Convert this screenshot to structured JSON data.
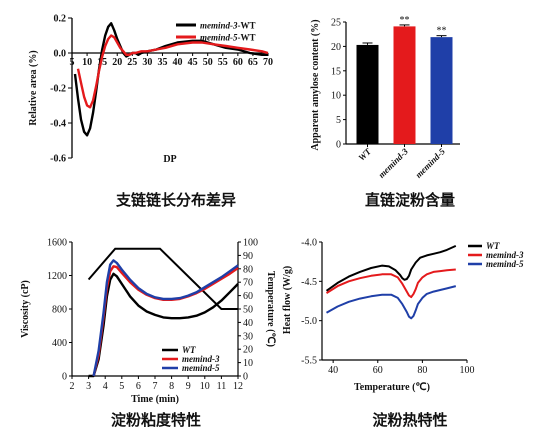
{
  "captions": {
    "tl": "支链链长分布差异",
    "tr": "直链淀粉含量",
    "bl": "淀粉粘度特性",
    "br": "淀粉热特性"
  },
  "chart_data": [
    {
      "type": "line",
      "id": "chain_length",
      "xlabel": "DP",
      "ylabel": "Relative area (%)",
      "xlim": [
        5,
        70
      ],
      "ylim": [
        -0.6,
        0.2
      ],
      "xticks": [
        "5",
        "10",
        "15",
        "20",
        "25",
        "30",
        "35",
        "40",
        "45",
        "50",
        "55",
        "60",
        "65",
        "70"
      ],
      "yticks": [
        "-0.6",
        "-0.4",
        "-0.2",
        "0.0",
        "0.2"
      ],
      "legend_position": "top-right",
      "series": [
        {
          "name": "memind-3-WT",
          "color": "#000000",
          "x": [
            6,
            7,
            8,
            9,
            10,
            11,
            12,
            13,
            14,
            15,
            16,
            17,
            18,
            19,
            20,
            21,
            22,
            23,
            24,
            25,
            26,
            27,
            28,
            30,
            33,
            36,
            40,
            45,
            48,
            52,
            56,
            60,
            64,
            68,
            70
          ],
          "y": [
            -0.12,
            -0.26,
            -0.38,
            -0.45,
            -0.47,
            -0.43,
            -0.34,
            -0.22,
            -0.09,
            0.02,
            0.1,
            0.15,
            0.17,
            0.13,
            0.08,
            0.04,
            0.0,
            -0.02,
            -0.01,
            0.0,
            0.0,
            -0.01,
            0.0,
            0.01,
            0.02,
            0.04,
            0.06,
            0.07,
            0.07,
            0.05,
            0.03,
            0.02,
            0.0,
            -0.01,
            -0.01
          ]
        },
        {
          "name": "memind-5-WT",
          "color": "#e41a1c",
          "x": [
            7,
            8,
            9,
            10,
            11,
            12,
            13,
            14,
            15,
            16,
            17,
            18,
            19,
            20,
            21,
            22,
            23,
            24,
            25,
            26,
            28,
            30,
            33,
            36,
            40,
            45,
            48,
            52,
            56,
            60,
            64,
            68,
            70
          ],
          "y": [
            -0.09,
            -0.17,
            -0.25,
            -0.3,
            -0.31,
            -0.27,
            -0.19,
            -0.1,
            -0.02,
            0.04,
            0.08,
            0.1,
            0.09,
            0.06,
            0.03,
            0.01,
            -0.01,
            -0.01,
            0.0,
            0.0,
            0.01,
            0.01,
            0.02,
            0.03,
            0.05,
            0.06,
            0.06,
            0.05,
            0.04,
            0.03,
            0.02,
            0.01,
            0.0
          ]
        }
      ]
    },
    {
      "type": "bar",
      "id": "amylose",
      "ylabel": "Apparent amylose content (%)",
      "ylim": [
        0,
        25
      ],
      "yticks": [
        "0",
        "5",
        "10",
        "15",
        "20",
        "25"
      ],
      "categories": [
        "WT",
        "memind-3",
        "memind-5"
      ],
      "values": [
        20.3,
        24.1,
        21.9
      ],
      "errors": [
        0.4,
        0.3,
        0.3
      ],
      "colors": [
        "#000000",
        "#e41a1c",
        "#1f3fa8"
      ],
      "annotations": [
        "",
        "**",
        "**"
      ]
    },
    {
      "type": "line",
      "id": "viscosity",
      "xlabel": "Time (min)",
      "ylabel": "Viscosity (cP)",
      "y2label": "Temperature (℃)",
      "xlim": [
        2,
        12
      ],
      "ylim": [
        0,
        1600
      ],
      "y2lim": [
        0,
        100
      ],
      "xticks": [
        "2",
        "3",
        "4",
        "5",
        "6",
        "7",
        "8",
        "9",
        "10",
        "11",
        "12"
      ],
      "yticks": [
        "0",
        "400",
        "800",
        "1200",
        "1600"
      ],
      "y2ticks": [
        "0",
        "10",
        "20",
        "30",
        "40",
        "50",
        "60",
        "70",
        "80",
        "90",
        "100"
      ],
      "legend_position": "bottom-right",
      "temperature": {
        "x": [
          3,
          4.6,
          7.3,
          11,
          12
        ],
        "y": [
          72,
          95,
          95,
          50,
          50
        ]
      },
      "series": [
        {
          "name": "WT",
          "color": "#000000",
          "x": [
            3,
            3.3,
            3.6,
            3.9,
            4.1,
            4.3,
            4.5,
            4.7,
            5,
            5.5,
            6,
            6.5,
            7,
            7.5,
            8,
            8.5,
            9,
            9.5,
            10,
            10.5,
            11,
            11.5,
            12
          ],
          "y": [
            0,
            0,
            200,
            600,
            950,
            1150,
            1220,
            1190,
            1100,
            950,
            840,
            770,
            730,
            700,
            690,
            690,
            700,
            720,
            760,
            820,
            900,
            1000,
            1100
          ]
        },
        {
          "name": "memind-3",
          "color": "#e41a1c",
          "x": [
            3.3,
            3.6,
            3.9,
            4.1,
            4.3,
            4.5,
            4.7,
            5,
            5.5,
            6,
            6.5,
            7,
            7.5,
            8,
            8.5,
            9,
            9.5,
            10,
            10.5,
            11,
            11.5,
            12
          ],
          "y": [
            0,
            250,
            700,
            1050,
            1250,
            1310,
            1300,
            1230,
            1120,
            1030,
            970,
            930,
            910,
            910,
            920,
            950,
            990,
            1040,
            1100,
            1160,
            1220,
            1290
          ]
        },
        {
          "name": "memind-5",
          "color": "#1f3fa8",
          "x": [
            3.3,
            3.6,
            3.9,
            4.1,
            4.3,
            4.5,
            4.7,
            5,
            5.5,
            6,
            6.5,
            7,
            7.5,
            8,
            8.5,
            9,
            9.5,
            10,
            10.5,
            11,
            11.5,
            12
          ],
          "y": [
            0,
            300,
            750,
            1120,
            1330,
            1380,
            1350,
            1270,
            1150,
            1050,
            980,
            940,
            920,
            920,
            930,
            960,
            1000,
            1060,
            1120,
            1180,
            1250,
            1320
          ]
        }
      ]
    },
    {
      "type": "line",
      "id": "dsc",
      "xlabel": "Temperature (℃)",
      "ylabel": "Heat flow (W/g)",
      "xlim": [
        35,
        100
      ],
      "ylim": [
        -5.5,
        -4.0
      ],
      "xticks": [
        "40",
        "60",
        "80",
        "100"
      ],
      "yticks": [
        "-4.0",
        "-4.5",
        "-5.0",
        "-5.5"
      ],
      "legend_position": "top-right",
      "series": [
        {
          "name": "WT",
          "color": "#000000",
          "x": [
            37,
            42,
            47,
            52,
            57,
            62,
            65,
            68,
            70,
            71,
            72,
            73,
            74,
            75,
            77,
            79,
            82,
            85,
            88,
            91,
            95
          ],
          "y": [
            -4.62,
            -4.52,
            -4.44,
            -4.38,
            -4.33,
            -4.3,
            -4.31,
            -4.36,
            -4.42,
            -4.46,
            -4.48,
            -4.47,
            -4.43,
            -4.35,
            -4.26,
            -4.2,
            -4.17,
            -4.15,
            -4.13,
            -4.1,
            -4.05
          ]
        },
        {
          "name": "memind-3",
          "color": "#e41a1c",
          "x": [
            37,
            42,
            47,
            52,
            57,
            62,
            66,
            69,
            71,
            73,
            74,
            75,
            76,
            77,
            78,
            80,
            82,
            85,
            88,
            91,
            95
          ],
          "y": [
            -4.65,
            -4.56,
            -4.5,
            -4.46,
            -4.43,
            -4.41,
            -4.41,
            -4.45,
            -4.53,
            -4.63,
            -4.68,
            -4.7,
            -4.66,
            -4.6,
            -4.52,
            -4.45,
            -4.41,
            -4.38,
            -4.37,
            -4.36,
            -4.35
          ]
        },
        {
          "name": "memind-5",
          "color": "#1f3fa8",
          "x": [
            37,
            42,
            47,
            52,
            57,
            62,
            66,
            69,
            71,
            73,
            74,
            75,
            76,
            77,
            78,
            80,
            82,
            85,
            88,
            91,
            95
          ],
          "y": [
            -4.9,
            -4.82,
            -4.76,
            -4.72,
            -4.69,
            -4.67,
            -4.67,
            -4.71,
            -4.79,
            -4.89,
            -4.95,
            -4.97,
            -4.94,
            -4.87,
            -4.79,
            -4.71,
            -4.66,
            -4.63,
            -4.61,
            -4.59,
            -4.56
          ]
        }
      ]
    }
  ]
}
